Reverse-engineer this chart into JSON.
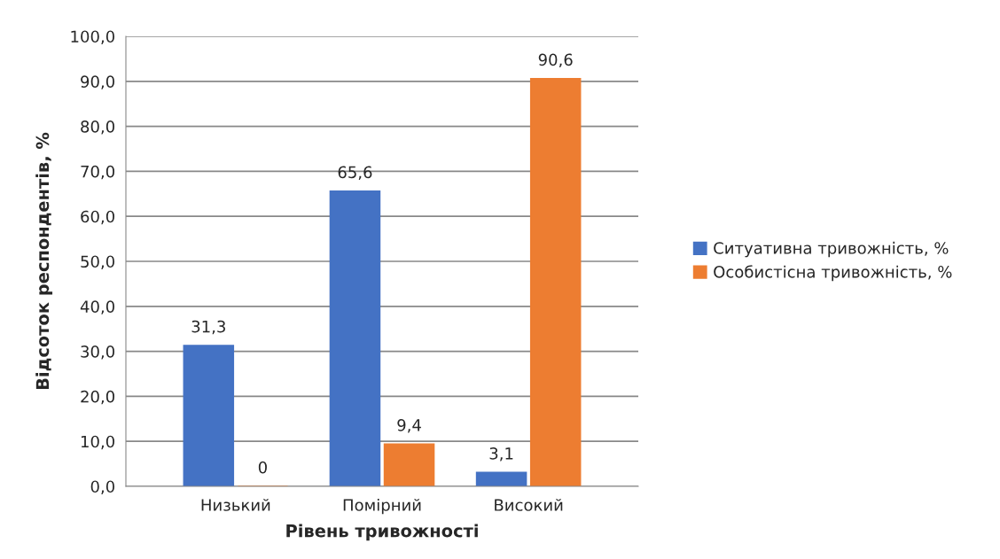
{
  "chart_data": {
    "type": "bar",
    "xlabel": "Рівень тривожності",
    "ylabel": "Відсоток респондентів, %",
    "categories": [
      "Низький",
      "Помірний",
      "Високий"
    ],
    "series": [
      {
        "name": "Ситуативна тривожність, %",
        "color": "#4472c4",
        "values": [
          31.3,
          65.6,
          3.1
        ],
        "value_labels": [
          "31,3",
          "65,6",
          "3,1"
        ]
      },
      {
        "name": "Особистісна тривожність, %",
        "color": "#ed7d31",
        "values": [
          0,
          9.4,
          90.6
        ],
        "value_labels": [
          "0",
          "9,4",
          "90,6"
        ]
      }
    ],
    "ylim": [
      0,
      100
    ],
    "yticks": [
      {
        "value": 0,
        "label": "0,0"
      },
      {
        "value": 10,
        "label": "10,0"
      },
      {
        "value": 20,
        "label": "20,0"
      },
      {
        "value": 30,
        "label": "30,0"
      },
      {
        "value": 40,
        "label": "40,0"
      },
      {
        "value": 50,
        "label": "50,0"
      },
      {
        "value": 60,
        "label": "60,0"
      },
      {
        "value": 70,
        "label": "70,0"
      },
      {
        "value": 80,
        "label": "80,0"
      },
      {
        "value": 90,
        "label": "90,0"
      },
      {
        "value": 100,
        "label": "100,0"
      }
    ],
    "grid": "y",
    "legend": "right"
  }
}
